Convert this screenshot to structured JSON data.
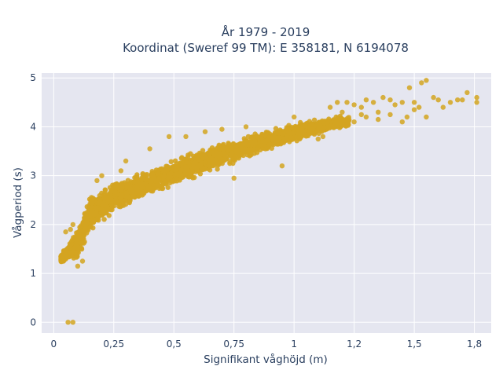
{
  "chart_data": {
    "type": "scatter",
    "title_line1": "År 1979 - 2019",
    "title_line2": "Koordinat (Sweref 99 TM): E 358181, N 6194078",
    "xlabel": "Signifikant våghöjd (m)",
    "ylabel": "Vågperiod (s)",
    "xlim": [
      -0.05,
      1.82
    ],
    "ylim": [
      -0.22,
      5.1
    ],
    "x_ticks": [
      0,
      0.25,
      0.5,
      0.75,
      1,
      1.25,
      1.5,
      1.75
    ],
    "x_tick_labels": [
      "0",
      "0,25",
      "0,5",
      "0,75",
      "1",
      "1,2",
      "1,5",
      "1,8"
    ],
    "y_ticks": [
      0,
      1,
      2,
      3,
      4,
      5
    ],
    "y_tick_labels": [
      "0",
      "1",
      "2",
      "3",
      "4",
      "5"
    ],
    "grid": true,
    "marker_color": "#D4A420",
    "background_color": "#E5E6F0",
    "dense_band": {
      "description_points": [
        [
          0.03,
          1.3
        ],
        [
          0.1,
          1.6
        ],
        [
          0.15,
          2.2
        ],
        [
          0.25,
          2.55
        ],
        [
          0.4,
          2.85
        ],
        [
          0.5,
          3.05
        ],
        [
          0.6,
          3.25
        ],
        [
          0.75,
          3.5
        ],
        [
          0.9,
          3.75
        ],
        [
          1.05,
          3.95
        ],
        [
          1.2,
          4.1
        ]
      ],
      "spread": [
        [
          0.03,
          0.1
        ],
        [
          0.1,
          0.35
        ],
        [
          0.15,
          0.45
        ],
        [
          0.25,
          0.35
        ],
        [
          0.4,
          0.3
        ],
        [
          0.5,
          0.3
        ],
        [
          0.6,
          0.3
        ],
        [
          0.75,
          0.28
        ],
        [
          0.9,
          0.25
        ],
        [
          1.05,
          0.2
        ],
        [
          1.2,
          0.15
        ]
      ]
    },
    "points": [
      [
        0.06,
        0.0
      ],
      [
        0.08,
        0.0
      ],
      [
        1.22,
        4.5
      ],
      [
        1.25,
        4.45
      ],
      [
        1.28,
        4.4
      ],
      [
        1.3,
        4.55
      ],
      [
        1.33,
        4.5
      ],
      [
        1.35,
        4.3
      ],
      [
        1.37,
        4.6
      ],
      [
        1.4,
        4.55
      ],
      [
        1.42,
        4.45
      ],
      [
        1.45,
        4.5
      ],
      [
        1.47,
        4.2
      ],
      [
        1.48,
        4.8
      ],
      [
        1.5,
        4.5
      ],
      [
        1.52,
        4.4
      ],
      [
        1.53,
        4.9
      ],
      [
        1.55,
        4.95
      ],
      [
        1.58,
        4.6
      ],
      [
        1.6,
        4.55
      ],
      [
        1.62,
        4.4
      ],
      [
        1.65,
        4.5
      ],
      [
        1.68,
        4.55
      ],
      [
        1.7,
        4.55
      ],
      [
        1.72,
        4.7
      ],
      [
        1.76,
        4.6
      ],
      [
        1.76,
        4.5
      ],
      [
        1.3,
        4.2
      ],
      [
        1.35,
        4.15
      ],
      [
        1.45,
        4.1
      ],
      [
        1.5,
        4.35
      ],
      [
        1.25,
        4.1
      ],
      [
        1.2,
        4.3
      ],
      [
        1.4,
        4.25
      ],
      [
        1.55,
        4.2
      ],
      [
        1.15,
        4.4
      ],
      [
        1.18,
        4.5
      ],
      [
        1.28,
        4.25
      ],
      [
        0.48,
        3.8
      ],
      [
        0.55,
        3.8
      ],
      [
        0.63,
        3.9
      ],
      [
        0.7,
        3.95
      ],
      [
        0.85,
        3.6
      ],
      [
        0.75,
        2.95
      ],
      [
        0.4,
        3.55
      ],
      [
        0.3,
        3.3
      ],
      [
        0.2,
        3.0
      ],
      [
        0.18,
        2.9
      ],
      [
        0.28,
        3.1
      ],
      [
        0.95,
        3.2
      ],
      [
        1.1,
        3.75
      ],
      [
        1.12,
        3.8
      ],
      [
        1.0,
        4.2
      ],
      [
        0.8,
        4.0
      ],
      [
        0.1,
        1.15
      ],
      [
        0.12,
        1.25
      ],
      [
        0.05,
        1.85
      ],
      [
        0.07,
        1.9
      ],
      [
        0.08,
        2.0
      ]
    ]
  }
}
